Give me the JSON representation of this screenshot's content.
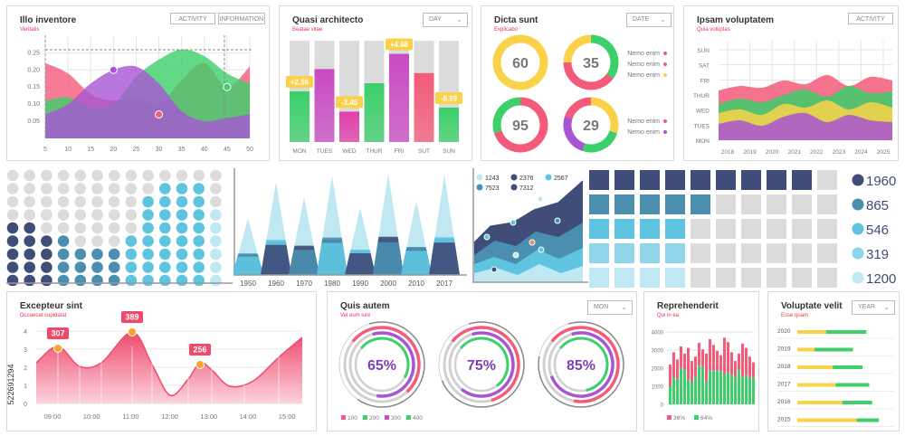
{
  "watermark_id": "522691294",
  "colors": {
    "pink": "#f45b7a",
    "green": "#3ccf6a",
    "purple": "#a855d4",
    "yellow": "#fad24a",
    "navy": "#3f4d78",
    "teal": "#4a8fb0",
    "cyan": "#5ec4e0",
    "lightcyan": "#bfe8f3",
    "gray": "#dcdcdc"
  },
  "panels": {
    "area": {
      "title": "Illo inventore",
      "subtitle": "Veritatis",
      "btn1": "ACTIVITY",
      "btn2": "INFORMATION"
    },
    "bars": {
      "title": "Quasi architecto",
      "subtitle": "Beatae vitae",
      "select": "DAY"
    },
    "donuts": {
      "title": "Dicta sunt",
      "subtitle": "Explicabo",
      "select": "DATE",
      "legend_top": [
        "Nemo enim",
        "Nemo enim",
        "Nemo enim"
      ],
      "legend_bottom": [
        "Nemo enim",
        "Nemo enim"
      ]
    },
    "stack": {
      "title": "Ipsam voluptatem",
      "subtitle": "Quia voluptas",
      "btn": "ACTIVITY"
    },
    "peaks": {
      "title": "Excepteur sint",
      "subtitle": "Occaecat cupidatat"
    },
    "rings": {
      "title": "Quis autem",
      "subtitle": "Vel eum iure",
      "select": "MON"
    },
    "stackbars": {
      "title": "Reprehenderit",
      "subtitle": "Qui in ea"
    },
    "hbars": {
      "title": "Voluptate velit",
      "subtitle": "Esse quam",
      "select": "YEAR"
    }
  },
  "chart_data": [
    {
      "id": "area",
      "type": "area",
      "x": [
        5,
        10,
        15,
        20,
        25,
        30,
        35,
        40,
        45,
        50
      ],
      "yticks": [
        "0.05",
        "0.10",
        "0.15",
        "0.20",
        "0.25"
      ],
      "ylim": [
        0,
        0.28
      ],
      "series": [
        {
          "values": [
            0.22,
            0.19,
            0.13,
            0.11,
            0.12,
            0.1,
            0.17,
            0.22,
            0.15,
            0.21
          ]
        },
        {
          "values": [
            0.11,
            0.12,
            0.09,
            0.1,
            0.18,
            0.23,
            0.26,
            0.24,
            0.19,
            0.16
          ]
        },
        {
          "values": [
            0.07,
            0.1,
            0.16,
            0.2,
            0.21,
            0.16,
            0.08,
            0.05,
            0.06,
            0.07
          ]
        }
      ],
      "markers": [
        {
          "x": 20,
          "y": 0.2
        },
        {
          "x": 30,
          "y": 0.07
        },
        {
          "x": 45,
          "y": 0.15
        }
      ]
    },
    {
      "id": "bars",
      "type": "bar",
      "categories": [
        "MON",
        "TUES",
        "WED",
        "THUR",
        "FRI",
        "SUT",
        "SUN"
      ],
      "values": [
        0.5,
        0.72,
        0.3,
        0.58,
        0.87,
        0.68,
        0.34
      ],
      "labels": [
        "+2.56",
        "",
        "-3.45",
        "",
        "+4.68",
        "",
        "-8.99"
      ]
    },
    {
      "id": "donuts",
      "type": "pie",
      "values": [
        60,
        35,
        95,
        29
      ]
    },
    {
      "id": "stack",
      "type": "area",
      "categories": [
        "2018",
        "2019",
        "2020",
        "2021",
        "2022",
        "2023",
        "2024",
        "2025"
      ],
      "ylabels": [
        "SUN",
        "SAT",
        "FRI",
        "THUR",
        "WED",
        "TUES",
        "MON"
      ]
    },
    {
      "id": "dots",
      "type": "table",
      "rows": 9,
      "cols": 13
    },
    {
      "id": "peaks",
      "type": "area",
      "categories": [
        "1950",
        "1960",
        "1970",
        "1980",
        "1990",
        "2000",
        "2010",
        "2017"
      ],
      "values": [
        0.55,
        0.9,
        0.75,
        0.96,
        0.65,
        0.98,
        0.72,
        0.97
      ]
    },
    {
      "id": "lines",
      "type": "line",
      "legend": [
        "1243",
        "2376",
        "2567",
        "7523",
        "7312"
      ]
    },
    {
      "id": "squares",
      "type": "heatmap",
      "rows": 5,
      "cols": 10,
      "values": [
        "1960",
        "865",
        "546",
        "319",
        "1200"
      ]
    },
    {
      "id": "peakline",
      "type": "line",
      "yticks": [
        "0",
        "1",
        "2",
        "3",
        "4"
      ],
      "categories": [
        "09:00",
        "10:00",
        "11:00",
        "12:00",
        "13:00",
        "14:00",
        "15:00"
      ],
      "labels": [
        "307",
        "389",
        "256"
      ]
    },
    {
      "id": "rings",
      "type": "pie",
      "values": [
        "65%",
        "75%",
        "85%"
      ],
      "legend": [
        "100",
        "200",
        "300",
        "400"
      ]
    },
    {
      "id": "stackbars",
      "type": "bar",
      "yticks": [
        "0",
        "1000",
        "2000",
        "3000",
        "4000"
      ],
      "legend": [
        "36%",
        "64%"
      ]
    },
    {
      "id": "hbars",
      "type": "bar",
      "categories": [
        "2020",
        "2019",
        "2018",
        "2017",
        "2016",
        "2015"
      ],
      "yellow": [
        0.3,
        0.18,
        0.37,
        0.4,
        0.47,
        0.62
      ],
      "green": [
        0.72,
        0.58,
        0.68,
        0.75,
        0.78,
        0.85
      ]
    }
  ]
}
